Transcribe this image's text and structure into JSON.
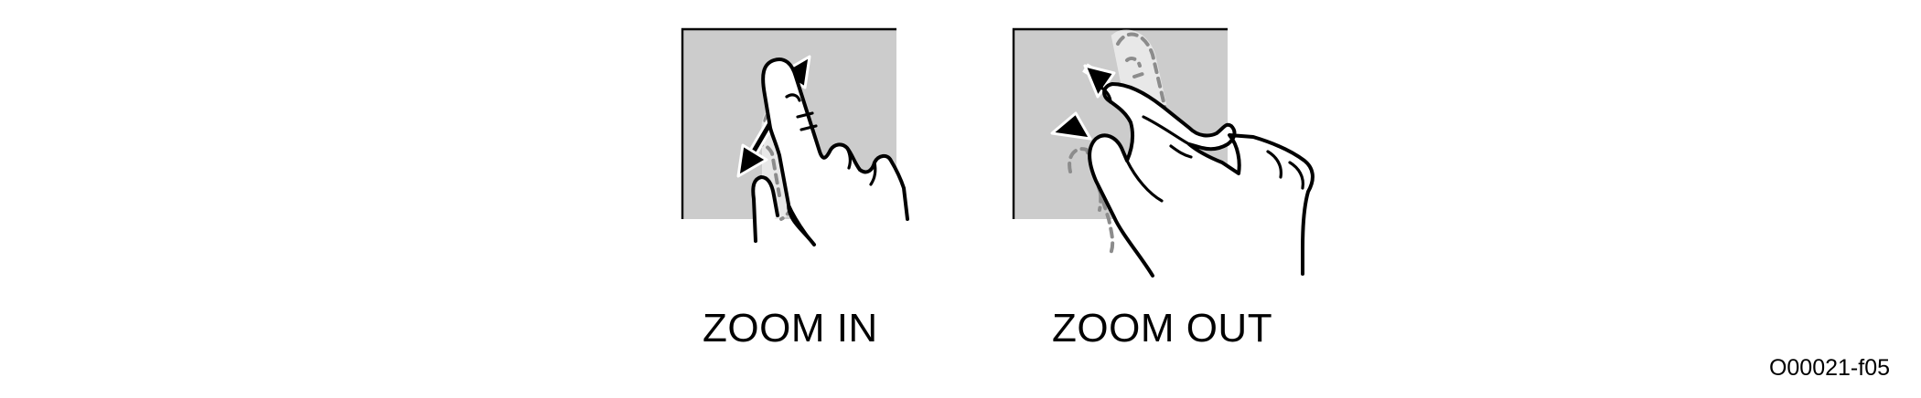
{
  "figure": {
    "zoom_in_label": "ZOOM IN",
    "zoom_out_label": "ZOOM OUT",
    "figure_id": "O00021-f05"
  },
  "icons": {
    "zoom_in": "pinch-spread-hand-icon",
    "zoom_out": "pinch-close-hand-icon"
  },
  "colors": {
    "screen": "#cccccc",
    "outline": "#000000",
    "ghost_outline": "#8c8c8c"
  }
}
